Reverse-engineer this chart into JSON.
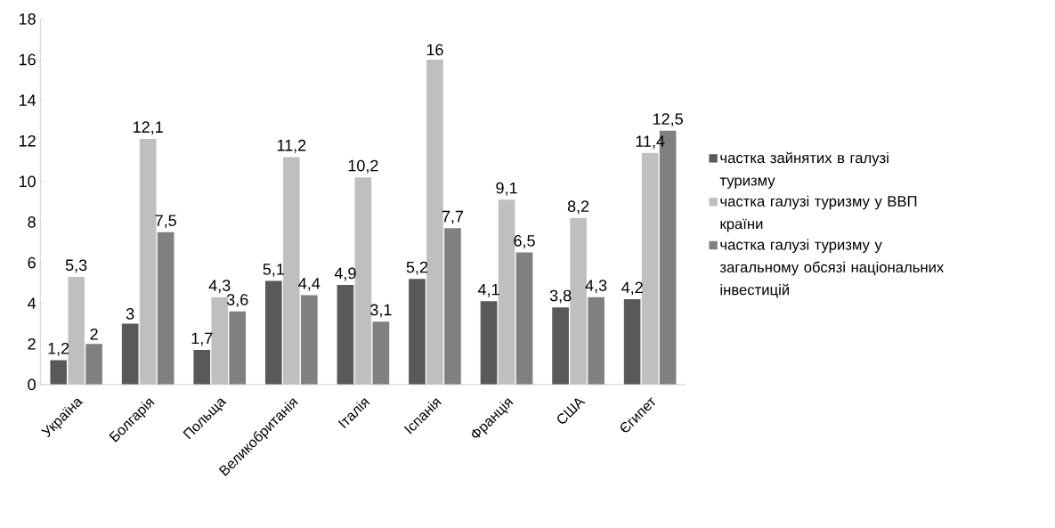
{
  "chart_data": {
    "type": "bar",
    "categories": [
      "Україна",
      "Болгарія",
      "Польща",
      "Великобританія",
      "Італія",
      "Іспанія",
      "Франція",
      "США",
      "Єгипет"
    ],
    "series": [
      {
        "name": "частка зайнятих в галузі туризму",
        "color": "#595959",
        "values": [
          1.2,
          3,
          1.7,
          5.1,
          4.9,
          5.2,
          4.1,
          3.8,
          4.2
        ],
        "value_labels": [
          "1,2",
          "3",
          "1,7",
          "5,1",
          "4,9",
          "5,2",
          "4,1",
          "3,8",
          "4,2"
        ]
      },
      {
        "name": "частка галузі туризму у ВВП країни",
        "color": "#bfbfbf",
        "values": [
          5.3,
          12.1,
          4.3,
          11.2,
          10.2,
          16,
          9.1,
          8.2,
          11.4
        ],
        "value_labels": [
          "5,3",
          "12,1",
          "4,3",
          "11,2",
          "10,2",
          "16",
          "9,1",
          "8,2",
          "11,4"
        ]
      },
      {
        "name": "частка галузі туризму у загальному обсязі національних інвестицій",
        "color": "#808080",
        "values": [
          2,
          7.5,
          3.6,
          4.4,
          3.1,
          7.7,
          6.5,
          4.3,
          12.5
        ],
        "value_labels": [
          "2",
          "7,5",
          "3,6",
          "4,4",
          "3,1",
          "7,7",
          "6,5",
          "4,3",
          "12,5"
        ]
      }
    ],
    "ylim": [
      0,
      18
    ],
    "yticks": [
      0,
      2,
      4,
      6,
      8,
      10,
      12,
      14,
      16,
      18
    ],
    "grid": false,
    "legend": "right"
  }
}
